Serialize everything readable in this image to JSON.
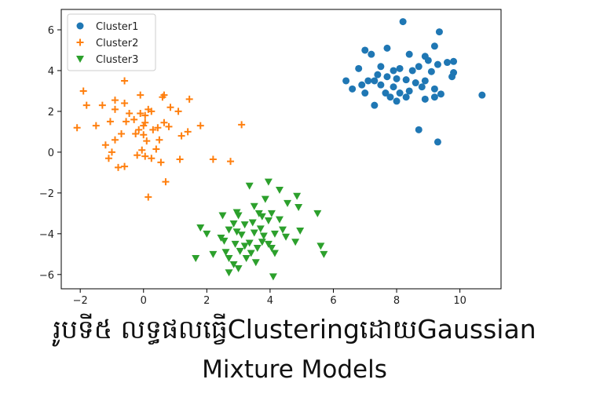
{
  "chart_data": {
    "type": "scatter",
    "title": "",
    "xlabel": "",
    "ylabel": "",
    "xlim": [
      -2.6,
      11.3
    ],
    "ylim": [
      -6.7,
      7.0
    ],
    "xticks": [
      -2,
      0,
      2,
      4,
      6,
      8,
      10
    ],
    "yticks": [
      -6,
      -4,
      -2,
      0,
      2,
      4,
      6
    ],
    "grid": false,
    "legend_position": "top-left",
    "series": [
      {
        "name": "Cluster1",
        "marker": "circle",
        "color": "#1f77b4",
        "points": [
          [
            8.2,
            6.4
          ],
          [
            9.35,
            5.9
          ],
          [
            9.2,
            5.2
          ],
          [
            7.0,
            5.0
          ],
          [
            7.7,
            5.1
          ],
          [
            7.2,
            4.8
          ],
          [
            8.4,
            4.8
          ],
          [
            8.9,
            4.7
          ],
          [
            9.0,
            4.5
          ],
          [
            9.6,
            4.4
          ],
          [
            9.8,
            4.45
          ],
          [
            9.3,
            4.3
          ],
          [
            8.7,
            4.2
          ],
          [
            7.5,
            4.2
          ],
          [
            7.9,
            4.0
          ],
          [
            8.1,
            4.1
          ],
          [
            6.8,
            4.1
          ],
          [
            8.5,
            4.0
          ],
          [
            9.1,
            3.95
          ],
          [
            7.4,
            3.8
          ],
          [
            7.7,
            3.7
          ],
          [
            8.0,
            3.6
          ],
          [
            9.75,
            3.7
          ],
          [
            8.3,
            3.55
          ],
          [
            7.1,
            3.5
          ],
          [
            6.4,
            3.5
          ],
          [
            7.3,
            3.5
          ],
          [
            8.9,
            3.5
          ],
          [
            9.8,
            3.9
          ],
          [
            8.6,
            3.4
          ],
          [
            6.9,
            3.3
          ],
          [
            7.5,
            3.3
          ],
          [
            8.8,
            3.2
          ],
          [
            7.9,
            3.2
          ],
          [
            6.6,
            3.1
          ],
          [
            9.2,
            3.1
          ],
          [
            8.4,
            3.0
          ],
          [
            7.0,
            2.9
          ],
          [
            7.65,
            2.9
          ],
          [
            8.1,
            2.9
          ],
          [
            9.4,
            2.85
          ],
          [
            10.7,
            2.8
          ],
          [
            8.3,
            2.7
          ],
          [
            9.2,
            2.7
          ],
          [
            7.8,
            2.7
          ],
          [
            8.9,
            2.6
          ],
          [
            8.0,
            2.5
          ],
          [
            7.3,
            2.3
          ],
          [
            8.7,
            1.1
          ],
          [
            9.3,
            0.5
          ]
        ]
      },
      {
        "name": "Cluster2",
        "marker": "plus",
        "color": "#ff7f0e",
        "points": [
          [
            -0.6,
            3.5
          ],
          [
            -1.9,
            3.0
          ],
          [
            -0.1,
            2.8
          ],
          [
            0.65,
            2.8
          ],
          [
            0.6,
            2.7
          ],
          [
            1.45,
            2.6
          ],
          [
            -0.9,
            2.55
          ],
          [
            -0.6,
            2.4
          ],
          [
            -1.8,
            2.3
          ],
          [
            -1.3,
            2.3
          ],
          [
            0.85,
            2.2
          ],
          [
            0.15,
            2.1
          ],
          [
            -0.9,
            2.1
          ],
          [
            0.25,
            2.0
          ],
          [
            1.1,
            2.0
          ],
          [
            -0.45,
            1.9
          ],
          [
            -0.1,
            1.9
          ],
          [
            0.05,
            1.8
          ],
          [
            -0.3,
            1.6
          ],
          [
            -1.05,
            1.5
          ],
          [
            -0.55,
            1.5
          ],
          [
            0.05,
            1.45
          ],
          [
            0.65,
            1.45
          ],
          [
            1.8,
            1.3
          ],
          [
            -1.5,
            1.3
          ],
          [
            0.0,
            1.3
          ],
          [
            0.45,
            1.2
          ],
          [
            0.8,
            1.25
          ],
          [
            3.1,
            1.35
          ],
          [
            -0.15,
            1.1
          ],
          [
            0.3,
            1.1
          ],
          [
            1.4,
            1.0
          ],
          [
            -2.1,
            1.2
          ],
          [
            -0.7,
            0.9
          ],
          [
            -0.25,
            0.9
          ],
          [
            0.0,
            0.85
          ],
          [
            1.2,
            0.8
          ],
          [
            -0.9,
            0.6
          ],
          [
            0.1,
            0.55
          ],
          [
            0.5,
            0.6
          ],
          [
            -0.05,
            0.1
          ],
          [
            -1.2,
            0.35
          ],
          [
            0.4,
            0.15
          ],
          [
            -0.2,
            -0.15
          ],
          [
            0.05,
            -0.2
          ],
          [
            0.55,
            -0.5
          ],
          [
            -1.0,
            0.0
          ],
          [
            -1.1,
            -0.3
          ],
          [
            0.25,
            -0.3
          ],
          [
            1.15,
            -0.35
          ],
          [
            2.2,
            -0.35
          ],
          [
            2.75,
            -0.45
          ],
          [
            -0.6,
            -0.7
          ],
          [
            -0.8,
            -0.75
          ],
          [
            0.7,
            -1.45
          ],
          [
            0.15,
            -2.2
          ]
        ]
      },
      {
        "name": "Cluster3",
        "marker": "triangle-down",
        "color": "#2ca02c",
        "points": [
          [
            3.95,
            -1.45
          ],
          [
            3.35,
            -1.65
          ],
          [
            4.3,
            -1.85
          ],
          [
            4.85,
            -2.15
          ],
          [
            3.85,
            -2.3
          ],
          [
            4.55,
            -2.5
          ],
          [
            3.5,
            -2.65
          ],
          [
            4.9,
            -2.7
          ],
          [
            2.95,
            -2.95
          ],
          [
            3.65,
            -3.0
          ],
          [
            4.05,
            -3.0
          ],
          [
            3.0,
            -3.1
          ],
          [
            2.5,
            -3.1
          ],
          [
            3.75,
            -3.15
          ],
          [
            5.5,
            -3.0
          ],
          [
            4.3,
            -3.3
          ],
          [
            3.95,
            -3.35
          ],
          [
            3.45,
            -3.45
          ],
          [
            2.85,
            -3.5
          ],
          [
            3.2,
            -3.55
          ],
          [
            1.8,
            -3.7
          ],
          [
            4.4,
            -3.8
          ],
          [
            2.7,
            -3.8
          ],
          [
            3.7,
            -3.75
          ],
          [
            2.95,
            -3.9
          ],
          [
            3.5,
            -3.95
          ],
          [
            4.95,
            -3.85
          ],
          [
            2.0,
            -4.0
          ],
          [
            4.15,
            -4.0
          ],
          [
            3.1,
            -4.05
          ],
          [
            3.8,
            -4.1
          ],
          [
            4.5,
            -4.15
          ],
          [
            2.45,
            -4.2
          ],
          [
            2.55,
            -4.35
          ],
          [
            3.35,
            -4.45
          ],
          [
            3.75,
            -4.4
          ],
          [
            4.8,
            -4.4
          ],
          [
            2.9,
            -4.5
          ],
          [
            3.95,
            -4.5
          ],
          [
            3.2,
            -4.6
          ],
          [
            3.6,
            -4.7
          ],
          [
            4.05,
            -4.7
          ],
          [
            5.6,
            -4.6
          ],
          [
            3.05,
            -4.85
          ],
          [
            2.6,
            -4.9
          ],
          [
            3.4,
            -4.95
          ],
          [
            4.15,
            -4.95
          ],
          [
            2.2,
            -5.0
          ],
          [
            5.7,
            -5.0
          ],
          [
            3.25,
            -5.2
          ],
          [
            2.7,
            -5.2
          ],
          [
            1.65,
            -5.2
          ],
          [
            3.55,
            -5.4
          ],
          [
            2.85,
            -5.5
          ],
          [
            3.0,
            -5.7
          ],
          [
            2.7,
            -5.9
          ],
          [
            4.1,
            -6.1
          ]
        ]
      }
    ]
  },
  "caption": {
    "line1": "រូបទី៥  លទ្ធផលធ្វើClusteringដោយGaussian",
    "line2": "Mixture Models"
  }
}
